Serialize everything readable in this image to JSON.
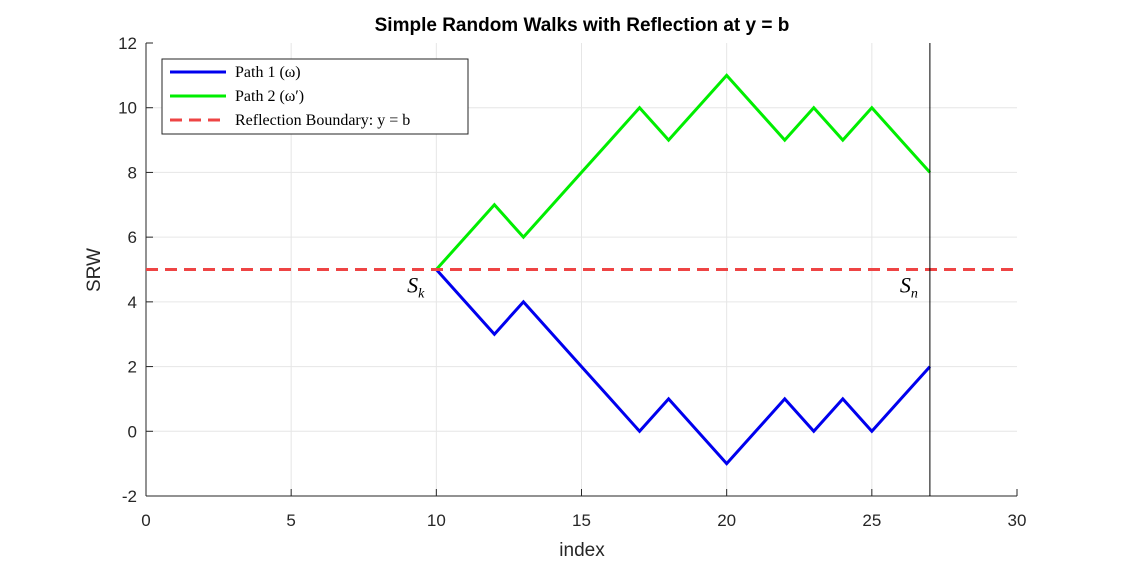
{
  "chart_data": {
    "type": "line",
    "title": "Simple Random Walks with Reflection at y = b",
    "xlabel": "index",
    "ylabel": "SRW",
    "xlim": [
      0,
      30
    ],
    "ylim": [
      -2,
      12
    ],
    "xticks": [
      0,
      5,
      10,
      15,
      20,
      25,
      30
    ],
    "yticks": [
      -2,
      0,
      2,
      4,
      6,
      8,
      10,
      12
    ],
    "grid": true,
    "legend_position": "top-left",
    "series": [
      {
        "name": "Path 1 (ω)",
        "color": "#0000ee",
        "style": "solid",
        "x": [
          10,
          11,
          12,
          13,
          14,
          15,
          16,
          17,
          18,
          19,
          20,
          21,
          22,
          23,
          24,
          25,
          26,
          27
        ],
        "y": [
          5,
          4,
          3,
          4,
          3,
          2,
          1,
          0,
          1,
          0,
          -1,
          0,
          1,
          0,
          1,
          0,
          1,
          2
        ]
      },
      {
        "name": "Path 2 (ω′)",
        "color": "#00ee00",
        "style": "solid",
        "x": [
          10,
          11,
          12,
          13,
          14,
          15,
          16,
          17,
          18,
          19,
          20,
          21,
          22,
          23,
          24,
          25,
          26,
          27
        ],
        "y": [
          5,
          6,
          7,
          6,
          7,
          8,
          9,
          10,
          9,
          10,
          11,
          10,
          9,
          10,
          9,
          10,
          9,
          8
        ]
      },
      {
        "name": "Reflection Boundary: y = b",
        "color": "#ee4444",
        "style": "dashed",
        "x": [
          0,
          30
        ],
        "y": [
          5,
          5
        ]
      }
    ],
    "vertical_line": {
      "x": 27,
      "color": "#000000"
    },
    "annotations": [
      {
        "main": "S",
        "sub": "k",
        "x": 10,
        "y": 5
      },
      {
        "main": "S",
        "sub": "n",
        "x": 27,
        "y": 5
      }
    ]
  }
}
